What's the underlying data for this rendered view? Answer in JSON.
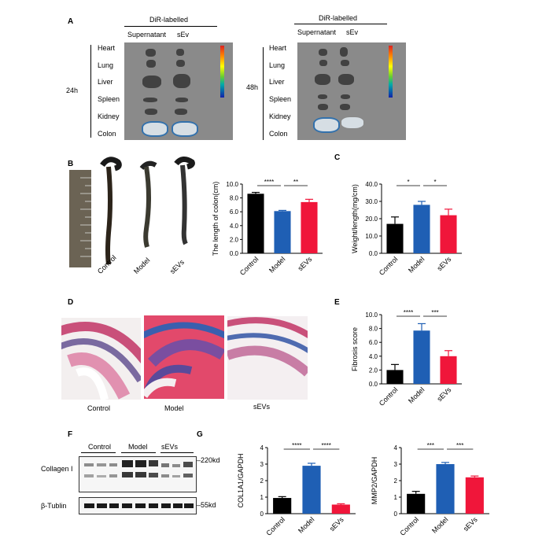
{
  "panels": {
    "A": "A",
    "B": "B",
    "C": "C",
    "D": "D",
    "E": "E",
    "F": "F",
    "G": "G"
  },
  "panelA": {
    "title": "DiR-labelled",
    "col1": "Supernatant",
    "col2": "sEv",
    "organs": [
      "Heart",
      "Lung",
      "Liver",
      "Spleen",
      "Kidney",
      "Colon"
    ],
    "time1": "24h",
    "time2": "48h"
  },
  "panelB": {
    "groups": [
      "Control",
      "Model",
      "sEVs"
    ]
  },
  "panelD": {
    "labels": [
      "Control",
      "Model",
      "sEVs"
    ]
  },
  "panelF": {
    "groups": [
      "Control",
      "Model",
      "sEVs"
    ],
    "row1": "Collagen I",
    "row2": "β-Tublin",
    "kd1": "220kd",
    "kd2": "55kd"
  },
  "colors": {
    "control": "#000000",
    "model": "#1f5fb4",
    "sevs": "#f0163a"
  },
  "chart_data": [
    {
      "id": "B",
      "type": "bar",
      "categories": [
        "Control",
        "Model",
        "sEVs"
      ],
      "values": [
        8.6,
        6.1,
        7.4
      ],
      "errors": [
        0.2,
        0.1,
        0.4
      ],
      "ylabel": "The length of colon(cm)",
      "ylim": [
        0,
        10
      ],
      "yticks": [
        0.0,
        2.0,
        4.0,
        6.0,
        8.0,
        10.0
      ],
      "sig": [
        {
          "from": 0,
          "to": 1,
          "label": "****"
        },
        {
          "from": 1,
          "to": 2,
          "label": "**"
        }
      ]
    },
    {
      "id": "C",
      "type": "bar",
      "categories": [
        "Control",
        "Model",
        "sEVs"
      ],
      "values": [
        17,
        28,
        22
      ],
      "errors": [
        4,
        2,
        3.5
      ],
      "ylabel": "Weight/length(mg/cm)",
      "ylim": [
        0,
        40
      ],
      "yticks": [
        0.0,
        10.0,
        20.0,
        30.0,
        40.0
      ],
      "sig": [
        {
          "from": 0,
          "to": 1,
          "label": "*"
        },
        {
          "from": 1,
          "to": 2,
          "label": "*"
        }
      ]
    },
    {
      "id": "E",
      "type": "bar",
      "categories": [
        "Control",
        "Model",
        "sEVs"
      ],
      "values": [
        2.0,
        7.7,
        4.0
      ],
      "errors": [
        0.8,
        1.0,
        0.8
      ],
      "ylabel": "Fibrosis score",
      "ylim": [
        0,
        10
      ],
      "yticks": [
        0.0,
        2.0,
        4.0,
        6.0,
        8.0,
        10.0
      ],
      "sig": [
        {
          "from": 0,
          "to": 1,
          "label": "****"
        },
        {
          "from": 1,
          "to": 2,
          "label": "***"
        }
      ]
    },
    {
      "id": "G1",
      "type": "bar",
      "categories": [
        "Control",
        "Model",
        "sEVs"
      ],
      "values": [
        0.95,
        2.9,
        0.55
      ],
      "errors": [
        0.08,
        0.15,
        0.05
      ],
      "ylabel": "COL1A1/GAPDH",
      "ylim": [
        0,
        4
      ],
      "yticks": [
        0,
        1,
        2,
        3,
        4
      ],
      "sig": [
        {
          "from": 0,
          "to": 1,
          "label": "****"
        },
        {
          "from": 1,
          "to": 2,
          "label": "****"
        }
      ]
    },
    {
      "id": "G2",
      "type": "bar",
      "categories": [
        "Control",
        "Model",
        "sEVs"
      ],
      "values": [
        1.2,
        3.0,
        2.2
      ],
      "errors": [
        0.15,
        0.1,
        0.08
      ],
      "ylabel": "MMP2/GAPDH",
      "ylim": [
        0,
        4
      ],
      "yticks": [
        0,
        1,
        2,
        3,
        4
      ],
      "sig": [
        {
          "from": 0,
          "to": 1,
          "label": "***"
        },
        {
          "from": 1,
          "to": 2,
          "label": "***"
        }
      ]
    }
  ]
}
